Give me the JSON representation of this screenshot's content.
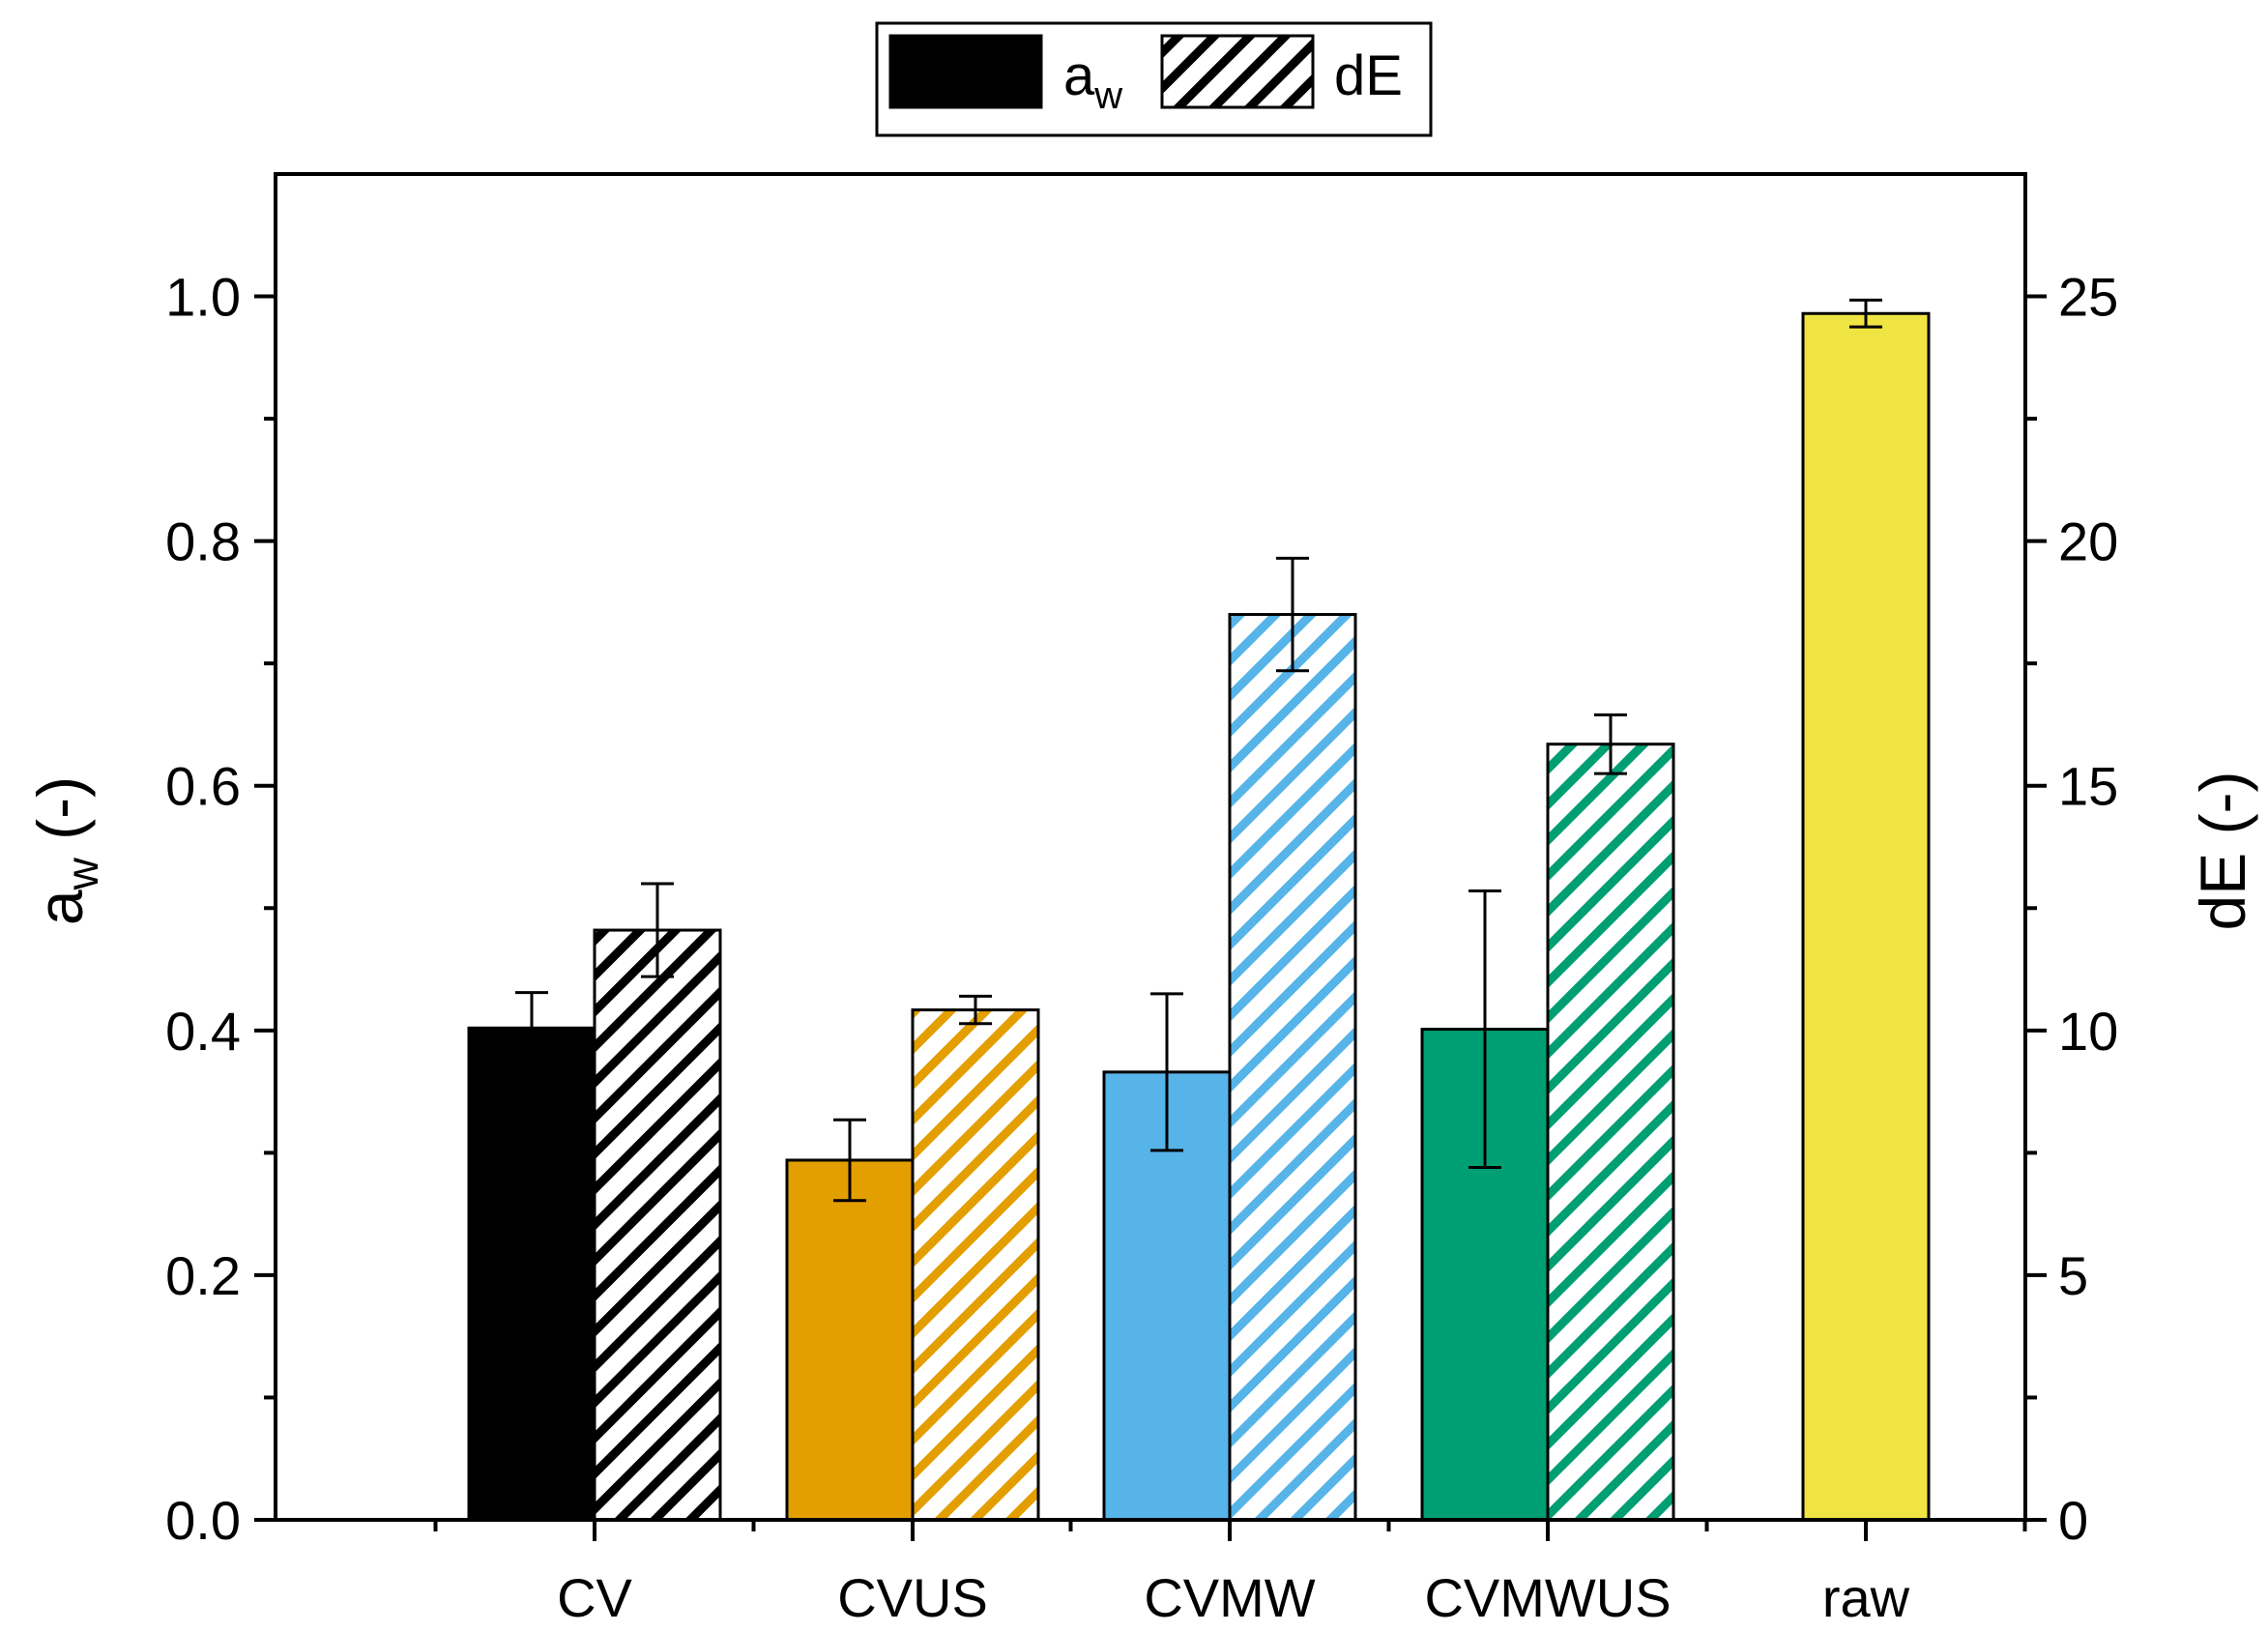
{
  "chart_data": {
    "type": "bar",
    "categories": [
      "CV",
      "CVUS",
      "CVMW",
      "CVMWUS",
      "raw"
    ],
    "series": [
      {
        "name": "a_w",
        "axis": "left",
        "pattern": "solid",
        "values": [
          0.402,
          0.294,
          0.366,
          0.401,
          0.986
        ],
        "errors": [
          0.029,
          0.033,
          0.064,
          0.113,
          0.011
        ]
      },
      {
        "name": "dE",
        "axis": "right",
        "pattern": "hatched",
        "values": [
          12.05,
          10.42,
          18.5,
          15.85,
          null
        ],
        "errors": [
          0.95,
          0.28,
          1.15,
          0.6,
          null
        ]
      }
    ],
    "colors": [
      "#000000",
      "#e39e00",
      "#56b4e9",
      "#009e73",
      "#f0e442"
    ],
    "ylabel_left": {
      "main": "a",
      "sub": "w",
      "suffix": " (-)"
    },
    "ylabel_right": "dE (-)",
    "ylim_left": [
      0,
      1.1
    ],
    "ylim_right": [
      0,
      27.5
    ],
    "yticks_left": [
      "0.0",
      "0.2",
      "0.4",
      "0.6",
      "0.8",
      "1.0"
    ],
    "yticks_right": [
      "0",
      "5",
      "10",
      "15",
      "20",
      "25"
    ],
    "legend": {
      "position": "top-center",
      "entries": [
        {
          "main": "a",
          "sub": "w",
          "pattern": "solid"
        },
        {
          "main": "dE",
          "sub": "",
          "pattern": "hatched"
        }
      ]
    },
    "grid": false
  }
}
